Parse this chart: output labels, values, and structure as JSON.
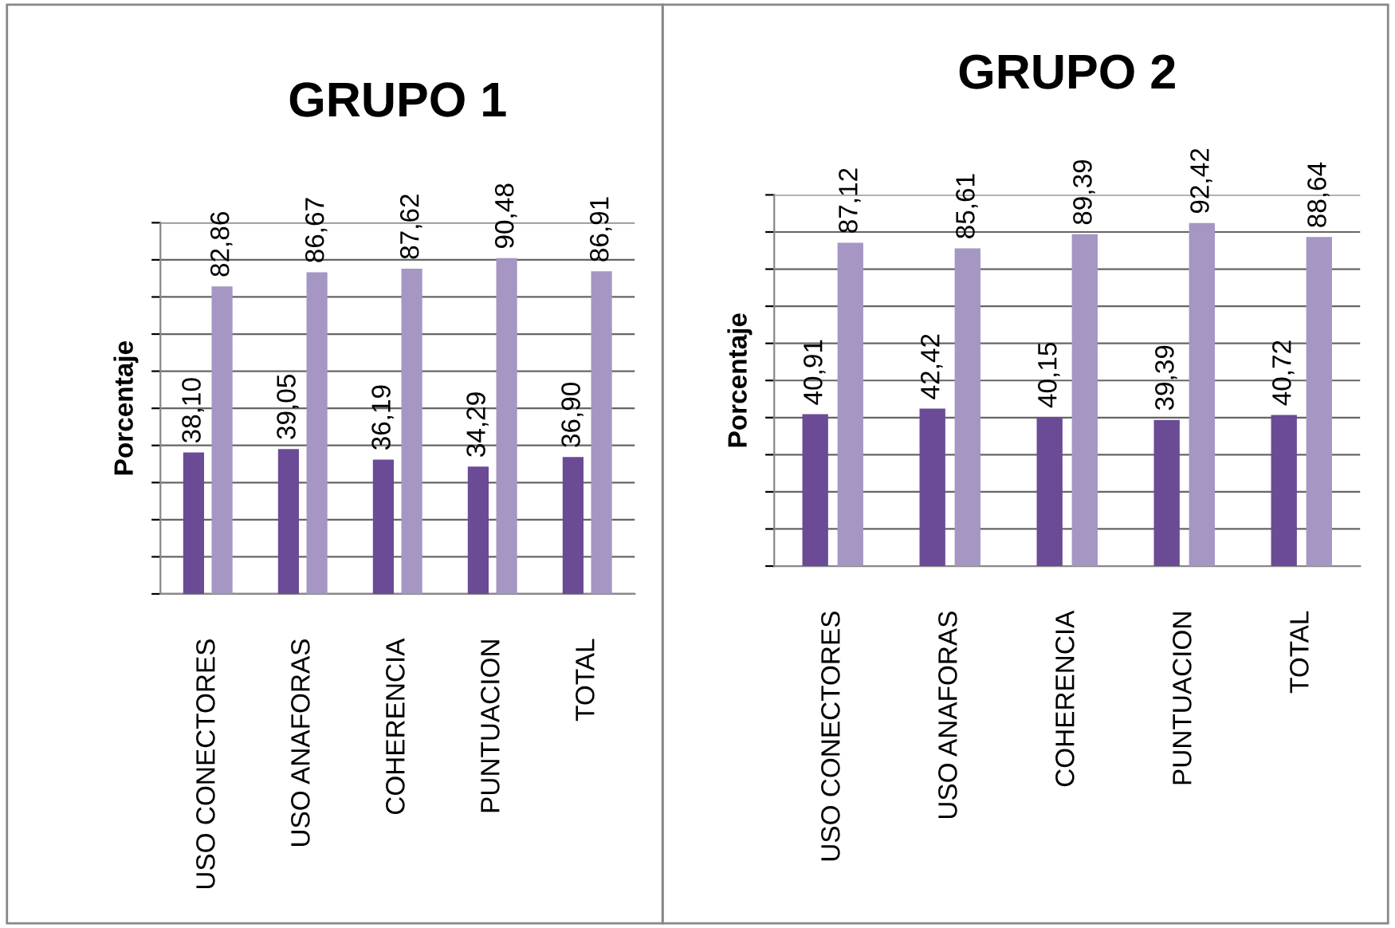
{
  "chart_data": [
    {
      "type": "bar",
      "title": "GRUPO 1",
      "ylabel": "Porcentaje",
      "categories": [
        "USO CONECTORES",
        "USO ANAFORAS",
        "COHERENCIA",
        "PUNTUACION",
        "TOTAL"
      ],
      "series": [
        {
          "color": "#6b4a96",
          "values": [
            38.1,
            39.05,
            36.19,
            34.29,
            36.9
          ],
          "value_labels": [
            "38,10",
            "39,05",
            "36,19",
            "34,29",
            "36,90"
          ]
        },
        {
          "color": "#a596c4",
          "values": [
            82.86,
            86.67,
            87.62,
            90.48,
            86.91
          ],
          "value_labels": [
            "82,86",
            "86,67",
            "87,62",
            "90,48",
            "86,91"
          ]
        }
      ],
      "ylim": [
        0,
        100
      ],
      "yticks": [
        {
          "value": 0,
          "label": null
        },
        {
          "value": 10,
          "label": null
        },
        {
          "value": 20,
          "label": null
        },
        {
          "value": 30,
          "label": null
        },
        {
          "value": 40,
          "label": null
        },
        {
          "value": 50,
          "label": null
        },
        {
          "value": 60,
          "label": null
        },
        {
          "value": 70,
          "label": null
        },
        {
          "value": 80,
          "label": null
        },
        {
          "value": 90,
          "label": null
        },
        {
          "value": 100,
          "label": null
        }
      ],
      "grid": "y",
      "tick_labels": "x"
    },
    {
      "type": "bar",
      "title": "GRUPO 2",
      "ylabel": "Porcentaje",
      "categories": [
        "USO CONECTORES",
        "USO ANAFORAS",
        "COHERENCIA",
        "PUNTUACION",
        "TOTAL"
      ],
      "series": [
        {
          "color": "#6b4a96",
          "values": [
            40.91,
            42.42,
            40.15,
            39.39,
            40.72
          ],
          "value_labels": [
            "40,91",
            "42,42",
            "40,15",
            "39,39",
            "40,72"
          ]
        },
        {
          "color": "#a596c4",
          "values": [
            87.12,
            85.61,
            89.39,
            92.42,
            88.64
          ],
          "value_labels": [
            "87,12",
            "85,61",
            "89,39",
            "92,42",
            "88,64"
          ]
        }
      ],
      "ylim": [
        0,
        100
      ],
      "yticks": [
        {
          "value": 0,
          "label": null
        },
        {
          "value": 10,
          "label": null
        },
        {
          "value": 20,
          "label": null
        },
        {
          "value": 30,
          "label": null
        },
        {
          "value": 40,
          "label": null
        },
        {
          "value": 50,
          "label": null
        },
        {
          "value": 60,
          "label": null
        },
        {
          "value": 70,
          "label": null
        },
        {
          "value": 80,
          "label": null
        },
        {
          "value": 90,
          "label": null
        },
        {
          "value": 100,
          "label": null
        }
      ],
      "grid": "y",
      "tick_labels": "x"
    }
  ]
}
